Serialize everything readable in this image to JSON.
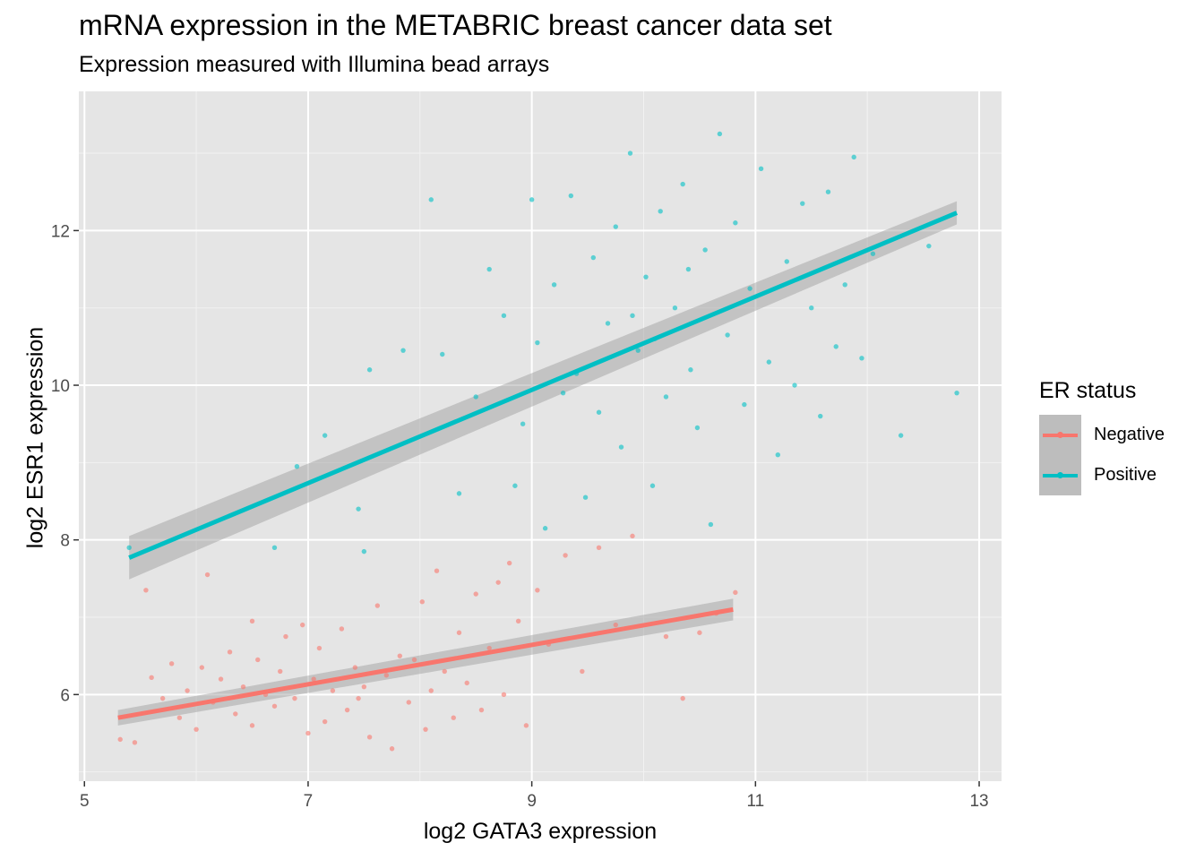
{
  "chart_data": {
    "type": "scatter",
    "title": "mRNA expression in the METABRIC breast cancer data set",
    "subtitle": "Expression measured with Illumina bead arrays",
    "xlabel": "log2 GATA3 expression",
    "ylabel": "log2 ESR1 expression",
    "xlim": [
      4.95,
      13.2
    ],
    "ylim": [
      4.88,
      13.8
    ],
    "x_ticks": [
      5,
      7,
      9,
      11,
      13
    ],
    "x_tick_labels": [
      "5",
      "7",
      "9",
      "11",
      "13"
    ],
    "y_ticks": [
      6,
      8,
      10,
      12
    ],
    "y_tick_labels": [
      "6",
      "8",
      "10",
      "12"
    ],
    "grid": true,
    "background": "#E5E5E5",
    "legend": {
      "title": "ER status",
      "position": "right"
    },
    "series": [
      {
        "name": "Negative",
        "color": "#F8766D",
        "trend": {
          "x": [
            5.3,
            10.8
          ],
          "y": [
            5.7,
            7.1
          ],
          "se": [
            0.1,
            0.14
          ]
        },
        "points": [
          [
            5.32,
            5.42
          ],
          [
            5.45,
            5.38
          ],
          [
            5.55,
            7.35
          ],
          [
            5.6,
            6.22
          ],
          [
            5.7,
            5.95
          ],
          [
            5.78,
            6.4
          ],
          [
            5.85,
            5.7
          ],
          [
            5.92,
            6.05
          ],
          [
            6.0,
            5.55
          ],
          [
            6.05,
            6.35
          ],
          [
            6.1,
            7.55
          ],
          [
            6.15,
            5.9
          ],
          [
            6.22,
            6.2
          ],
          [
            6.3,
            6.55
          ],
          [
            6.35,
            5.75
          ],
          [
            6.42,
            6.1
          ],
          [
            6.5,
            5.6
          ],
          [
            6.55,
            6.45
          ],
          [
            6.62,
            6.0
          ],
          [
            6.7,
            5.85
          ],
          [
            6.75,
            6.3
          ],
          [
            6.8,
            6.75
          ],
          [
            6.88,
            5.95
          ],
          [
            6.95,
            6.9
          ],
          [
            7.0,
            5.5
          ],
          [
            7.05,
            6.2
          ],
          [
            7.1,
            6.6
          ],
          [
            7.15,
            5.65
          ],
          [
            7.22,
            6.05
          ],
          [
            7.3,
            6.85
          ],
          [
            7.35,
            5.8
          ],
          [
            7.42,
            6.35
          ],
          [
            7.5,
            6.1
          ],
          [
            7.55,
            5.45
          ],
          [
            7.62,
            7.15
          ],
          [
            7.7,
            6.25
          ],
          [
            7.75,
            5.3
          ],
          [
            7.82,
            6.5
          ],
          [
            7.9,
            5.9
          ],
          [
            7.95,
            6.45
          ],
          [
            8.02,
            7.2
          ],
          [
            8.1,
            6.05
          ],
          [
            8.15,
            7.6
          ],
          [
            8.22,
            6.3
          ],
          [
            8.3,
            5.7
          ],
          [
            8.35,
            6.8
          ],
          [
            8.42,
            6.15
          ],
          [
            8.5,
            7.3
          ],
          [
            8.55,
            5.8
          ],
          [
            8.62,
            6.6
          ],
          [
            8.7,
            7.45
          ],
          [
            8.75,
            6.0
          ],
          [
            8.8,
            7.7
          ],
          [
            8.88,
            6.95
          ],
          [
            8.95,
            5.6
          ],
          [
            9.05,
            7.35
          ],
          [
            9.15,
            6.65
          ],
          [
            9.3,
            7.8
          ],
          [
            9.45,
            6.3
          ],
          [
            9.6,
            7.9
          ],
          [
            9.75,
            6.9
          ],
          [
            9.9,
            8.05
          ],
          [
            10.2,
            6.75
          ],
          [
            10.35,
            5.95
          ],
          [
            10.5,
            6.8
          ],
          [
            10.65,
            7.05
          ],
          [
            10.82,
            7.32
          ],
          [
            6.5,
            6.95
          ],
          [
            7.45,
            5.95
          ],
          [
            8.05,
            5.55
          ]
        ]
      },
      {
        "name": "Positive",
        "color": "#00BFC4",
        "trend": {
          "x": [
            5.4,
            12.8
          ],
          "y": [
            7.77,
            12.23
          ],
          "se": [
            0.28,
            0.15
          ]
        },
        "points": [
          [
            5.4,
            7.9
          ],
          [
            6.7,
            7.9
          ],
          [
            6.9,
            8.95
          ],
          [
            7.15,
            9.35
          ],
          [
            7.45,
            8.4
          ],
          [
            7.5,
            7.85
          ],
          [
            7.55,
            10.2
          ],
          [
            7.85,
            10.45
          ],
          [
            8.1,
            12.4
          ],
          [
            8.2,
            10.4
          ],
          [
            8.35,
            8.6
          ],
          [
            8.5,
            9.85
          ],
          [
            8.62,
            11.5
          ],
          [
            8.75,
            10.9
          ],
          [
            8.85,
            8.7
          ],
          [
            8.92,
            9.5
          ],
          [
            9.0,
            12.4
          ],
          [
            9.05,
            10.55
          ],
          [
            9.12,
            8.15
          ],
          [
            9.2,
            11.3
          ],
          [
            9.28,
            9.9
          ],
          [
            9.35,
            12.45
          ],
          [
            9.4,
            10.15
          ],
          [
            9.48,
            8.55
          ],
          [
            9.55,
            11.65
          ],
          [
            9.6,
            9.65
          ],
          [
            9.68,
            10.8
          ],
          [
            9.75,
            12.05
          ],
          [
            9.8,
            9.2
          ],
          [
            9.88,
            13.0
          ],
          [
            9.95,
            10.45
          ],
          [
            10.02,
            11.4
          ],
          [
            10.08,
            8.7
          ],
          [
            10.15,
            12.25
          ],
          [
            10.2,
            9.85
          ],
          [
            10.28,
            11.0
          ],
          [
            10.35,
            12.6
          ],
          [
            10.42,
            10.2
          ],
          [
            10.48,
            9.45
          ],
          [
            10.55,
            11.75
          ],
          [
            10.6,
            8.2
          ],
          [
            10.68,
            13.25
          ],
          [
            10.75,
            10.65
          ],
          [
            10.82,
            12.1
          ],
          [
            10.9,
            9.75
          ],
          [
            10.95,
            11.25
          ],
          [
            11.05,
            12.8
          ],
          [
            11.12,
            10.3
          ],
          [
            11.2,
            9.1
          ],
          [
            11.28,
            11.6
          ],
          [
            11.35,
            10.0
          ],
          [
            11.42,
            12.35
          ],
          [
            11.5,
            11.0
          ],
          [
            11.58,
            9.6
          ],
          [
            11.65,
            12.5
          ],
          [
            11.72,
            10.5
          ],
          [
            11.8,
            11.3
          ],
          [
            11.88,
            12.95
          ],
          [
            11.95,
            10.35
          ],
          [
            12.05,
            11.7
          ],
          [
            12.3,
            9.35
          ],
          [
            12.55,
            11.8
          ],
          [
            12.8,
            9.9
          ],
          [
            9.9,
            10.9
          ],
          [
            10.4,
            11.5
          ],
          [
            10.1,
            10.6
          ]
        ]
      }
    ]
  }
}
